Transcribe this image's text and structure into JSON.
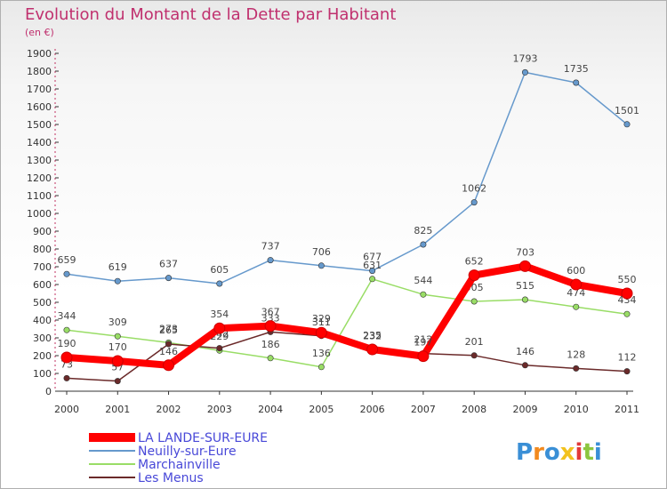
{
  "chart_data": {
    "type": "line",
    "title": "Evolution du Montant de la Dette par Habitant",
    "subtitle": "(en €)",
    "x": [
      "2000",
      "2001",
      "2002",
      "2003",
      "2004",
      "2005",
      "2006",
      "2007",
      "2008",
      "2009",
      "2010",
      "2011"
    ],
    "ylim": [
      0,
      1900
    ],
    "yticks": [
      0,
      100,
      200,
      300,
      400,
      500,
      600,
      700,
      800,
      900,
      1000,
      1100,
      1200,
      1300,
      1400,
      1500,
      1600,
      1700,
      1800,
      1900
    ],
    "grid": false,
    "legend_position": "bottom-left",
    "series": [
      {
        "name": "LA LANDE-SUR-EURE",
        "color": "#ff0000",
        "values": [
          190,
          170,
          146,
          354,
          367,
          329,
          235,
          197,
          652,
          703,
          600,
          550
        ]
      },
      {
        "name": "Neuilly-sur-Eure",
        "color": "#6699cc",
        "values": [
          659,
          619,
          637,
          605,
          737,
          706,
          677,
          825,
          1062,
          1793,
          1735,
          1501
        ]
      },
      {
        "name": "Marchainville",
        "color": "#99dd66",
        "values": [
          344,
          309,
          273,
          229,
          186,
          136,
          631,
          544,
          505,
          515,
          474,
          434
        ]
      },
      {
        "name": "Les Menus",
        "color": "#6b2a2a",
        "values": [
          73,
          57,
          265,
          242,
          333,
          311,
          232,
          212,
          201,
          146,
          128,
          112
        ]
      }
    ]
  },
  "logo": {
    "letters": [
      "P",
      "r",
      "o",
      "x",
      "i",
      "t",
      "i"
    ],
    "colors": [
      "#3a8fd6",
      "#f28a1e",
      "#3a8fd6",
      "#f2c21e",
      "#e23a3a",
      "#8cc63f",
      "#3a8fd6"
    ]
  }
}
